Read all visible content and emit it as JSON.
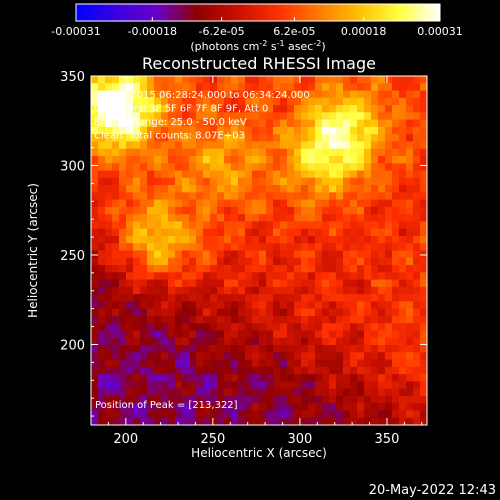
{
  "colorbar": {
    "tick_labels": [
      "-0.00031",
      "-0.00018",
      "-6.2e-05",
      "6.2e-05",
      "0.00018",
      "0.00031"
    ],
    "tick_values": [
      -0.00031,
      -0.00018,
      -6.2e-05,
      6.2e-05,
      0.00018,
      0.00031
    ],
    "unit_label_parts": [
      "(photons cm",
      "-2",
      " s",
      "-1",
      " asec",
      "-2",
      ")"
    ],
    "range": [
      -0.00031,
      0.00031
    ],
    "stops": [
      "#0000ff",
      "#3a00e0",
      "#6a00c8",
      "#900000",
      "#c81000",
      "#ff3000",
      "#ff7a00",
      "#ffc000",
      "#ffff40",
      "#ffffff"
    ]
  },
  "chart_data": {
    "type": "heatmap",
    "title": "Reconstructed RHESSI Image",
    "xlabel": "Heliocentric X (arcsec)",
    "ylabel": "Heliocentric Y (arcsec)",
    "xlim": [
      180,
      373
    ],
    "ylim": [
      155,
      350
    ],
    "x_ticks": [
      200,
      250,
      300,
      350
    ],
    "y_ticks": [
      200,
      250,
      300,
      350
    ],
    "annotations": [
      "18-Apr-2015 06:28:24.000 to 06:34:24.000",
      "Detectors: 3F 5F 6F 7F 8F 9F, Att 0",
      "Energy Range: 25.0 - 50.0 keV",
      "Clean. Total counts: 8.07E+03"
    ],
    "peak_text": "Position of Peak = [213,322]",
    "peak_position": [
      213,
      322
    ],
    "sources": [
      {
        "x": 195,
        "y": 332,
        "amplitude": 0.00031
      },
      {
        "x": 326,
        "y": 319,
        "amplitude": 0.0002
      },
      {
        "x": 310,
        "y": 300,
        "amplitude": 0.00012
      },
      {
        "x": 218,
        "y": 258,
        "amplitude": 0.00017
      },
      {
        "x": 255,
        "y": 300,
        "amplitude": 0.0001
      }
    ],
    "grid": false
  },
  "timestamp": "20-May-2022 12:43"
}
